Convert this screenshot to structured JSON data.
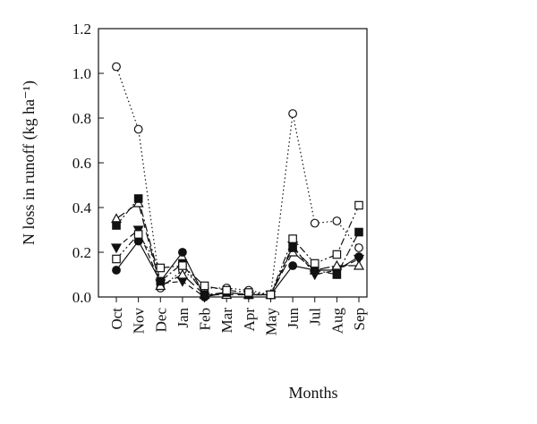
{
  "chart_data": {
    "type": "line",
    "title": "",
    "xlabel": "Months",
    "ylabel": "N loss in runoff (kg ha⁻¹)",
    "categories": [
      "Oct",
      "Nov",
      "Dec",
      "Jan",
      "Feb",
      "Mar",
      "Apr",
      "May",
      "Jun",
      "Jul",
      "Aug",
      "Sep"
    ],
    "ylim": [
      0,
      1.2
    ],
    "yticks": [
      "0.0",
      "0.2",
      "0.4",
      "0.6",
      "0.8",
      "1.0",
      "1.2"
    ],
    "grid": false,
    "legend": "none",
    "series": [
      {
        "marker": "filled-circle",
        "line_style": "solid",
        "values": [
          0.12,
          0.25,
          0.07,
          0.2,
          0.0,
          0.02,
          0.01,
          0.01,
          0.14,
          0.12,
          0.12,
          0.18
        ]
      },
      {
        "marker": "open-circle",
        "line_style": "dotted",
        "values": [
          1.03,
          0.75,
          0.04,
          0.12,
          0.04,
          0.04,
          0.03,
          0.01,
          0.82,
          0.33,
          0.34,
          0.22
        ]
      },
      {
        "marker": "filled-triangle-down",
        "line_style": "dashed",
        "values": [
          0.22,
          0.3,
          0.06,
          0.07,
          0.0,
          0.02,
          0.01,
          0.01,
          0.23,
          0.1,
          0.12,
          0.17
        ]
      },
      {
        "marker": "open-triangle-up",
        "line_style": "long-dashed",
        "values": [
          0.35,
          0.42,
          0.05,
          0.1,
          0.01,
          0.01,
          0.01,
          0.01,
          0.2,
          0.12,
          0.14,
          0.14
        ]
      },
      {
        "marker": "filled-square",
        "line_style": "dash-dot",
        "values": [
          0.32,
          0.44,
          0.07,
          0.15,
          0.01,
          0.02,
          0.01,
          0.01,
          0.22,
          0.12,
          0.1,
          0.29
        ]
      },
      {
        "marker": "open-square",
        "line_style": "dash-dot-dot",
        "values": [
          0.17,
          0.28,
          0.13,
          0.14,
          0.05,
          0.03,
          0.02,
          0.01,
          0.26,
          0.15,
          0.19,
          0.41
        ]
      }
    ]
  }
}
